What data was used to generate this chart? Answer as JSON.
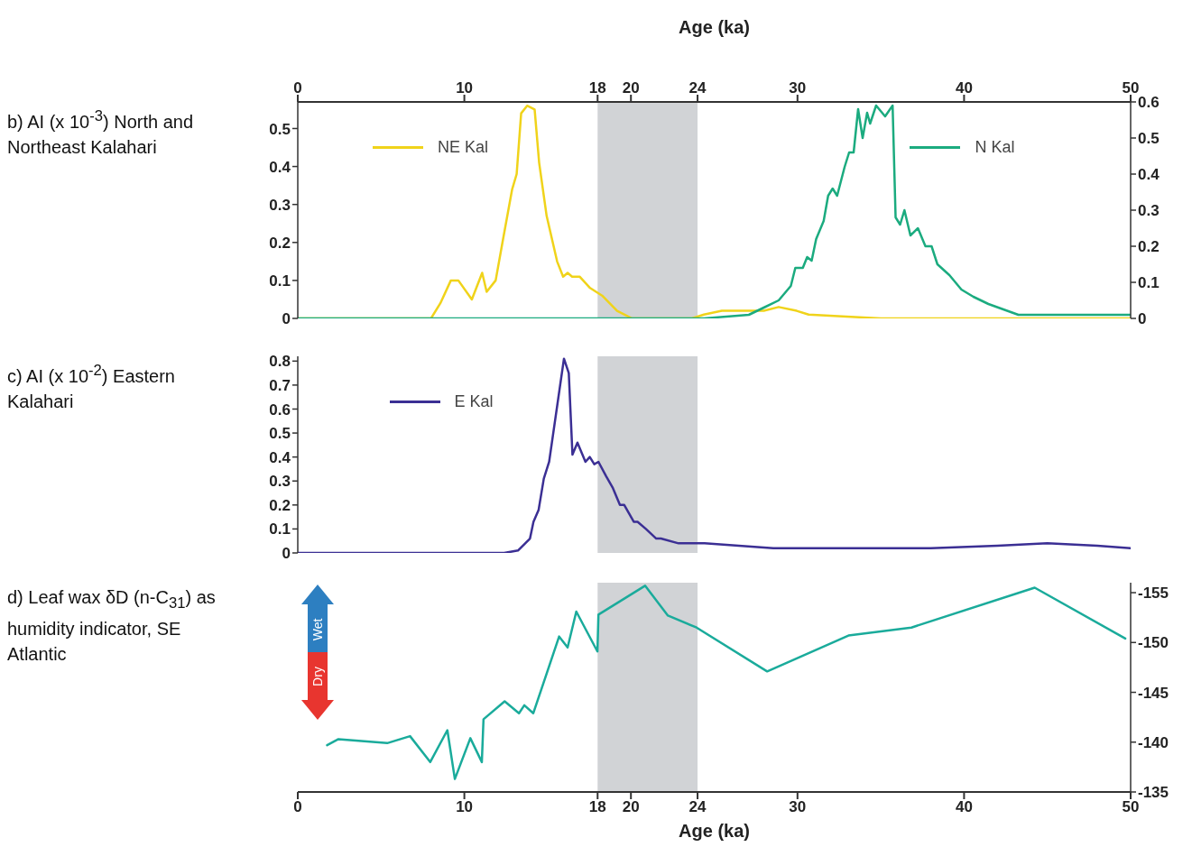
{
  "chart_data": [
    {
      "type": "line",
      "ylabel": "b) AI (x 10$^{-3}$) North and Northeast Kalahari",
      "xlabel": "Age (ka)",
      "xlim": [
        0,
        50
      ],
      "xticks": [
        0,
        10,
        18,
        20,
        24,
        30,
        40,
        50
      ],
      "ylim": [
        0,
        0.57
      ],
      "yticks": [
        0,
        0.1,
        0.2,
        0.3,
        0.4,
        0.5
      ],
      "y2lim": [
        0,
        0.6
      ],
      "y2ticks": [
        0,
        0.1,
        0.2,
        0.3,
        0.4,
        0.5,
        0.6
      ],
      "legend": "top",
      "bands": [
        {
          "axis": "x",
          "from": 18,
          "to": 24,
          "color": "#d1d3d6"
        }
      ],
      "series": [
        {
          "name": "NE Kal",
          "color": "#f0d31a",
          "x": [
            0,
            8,
            8.56,
            9.19,
            9.64,
            10.45,
            11.07,
            11.34,
            11.88,
            12.33,
            12.87,
            13.14,
            13.41,
            13.77,
            14.22,
            14.49,
            14.94,
            15.57,
            15.93,
            16.2,
            16.47,
            16.92,
            17.55,
            18.27,
            19.17,
            20.07,
            21.87,
            23.66,
            24.38,
            25.46,
            26.7,
            27.98,
            28.87,
            29.95,
            30.67,
            35,
            50
          ],
          "values": [
            0,
            0,
            0.04,
            0.1,
            0.1,
            0.05,
            0.12,
            0.07,
            0.1,
            0.21,
            0.34,
            0.38,
            0.54,
            0.56,
            0.55,
            0.41,
            0.27,
            0.15,
            0.11,
            0.12,
            0.11,
            0.11,
            0.08,
            0.06,
            0.02,
            0,
            0,
            0,
            0.01,
            0.02,
            0.02,
            0.02,
            0.03,
            0.02,
            0.01,
            0,
            0
          ]
        },
        {
          "name": "N Kal",
          "color": "#1bab7f",
          "axis": "y2",
          "x": [
            0,
            24.38,
            27.08,
            27.98,
            28.87,
            29.6,
            29.87,
            30.32,
            30.58,
            30.85,
            31.12,
            31.57,
            31.84,
            32.11,
            32.38,
            32.83,
            33.1,
            33.37,
            33.64,
            33.91,
            34.18,
            34.36,
            34.72,
            35.26,
            35.71,
            35.89,
            36.16,
            36.42,
            36.78,
            37.23,
            37.68,
            38.05,
            38.4,
            39.12,
            39.84,
            40.56,
            41.46,
            43.26,
            45.06,
            50
          ],
          "values": [
            0,
            0,
            0.01,
            0.03,
            0.05,
            0.09,
            0.14,
            0.14,
            0.17,
            0.16,
            0.22,
            0.27,
            0.34,
            0.36,
            0.34,
            0.42,
            0.46,
            0.46,
            0.58,
            0.5,
            0.57,
            0.54,
            0.59,
            0.56,
            0.59,
            0.28,
            0.26,
            0.3,
            0.23,
            0.25,
            0.2,
            0.2,
            0.15,
            0.12,
            0.08,
            0.06,
            0.04,
            0.01,
            0.01,
            0.01
          ]
        }
      ]
    },
    {
      "type": "line",
      "ylabel": "c) AI (x 10$^{-2}$) Eastern Kalahari",
      "xlim": [
        0,
        50
      ],
      "ylim": [
        0,
        0.82
      ],
      "yticks": [
        0,
        0.1,
        0.2,
        0.3,
        0.4,
        0.5,
        0.6,
        0.7,
        0.8
      ],
      "tick_labels": "y",
      "legend": "top left",
      "bands": [
        {
          "axis": "x",
          "from": 18,
          "to": 24,
          "color": "#d1d3d6"
        }
      ],
      "series": [
        {
          "name": "E Kal",
          "color": "#3b2f94",
          "x": [
            0,
            12.39,
            13.22,
            13.94,
            14.15,
            14.46,
            14.77,
            15.09,
            15.98,
            16.27,
            16.49,
            16.79,
            17.27,
            17.53,
            17.8,
            18.05,
            18.51,
            18.92,
            19.34,
            19.6,
            20.17,
            20.4,
            20.9,
            21.52,
            21.8,
            22.86,
            24.42,
            26.48,
            28.55,
            30.85,
            35,
            38,
            42,
            45,
            48,
            50
          ],
          "values": [
            0,
            0,
            0.01,
            0.06,
            0.13,
            0.18,
            0.31,
            0.38,
            0.81,
            0.75,
            0.41,
            0.46,
            0.38,
            0.4,
            0.37,
            0.38,
            0.32,
            0.27,
            0.2,
            0.2,
            0.13,
            0.13,
            0.1,
            0.06,
            0.06,
            0.04,
            0.04,
            0.03,
            0.02,
            0.02,
            0.02,
            0.02,
            0.03,
            0.04,
            0.03,
            0.02
          ]
        }
      ]
    },
    {
      "type": "line",
      "ylabel": "d) Leaf wax δD (n-C$_{31}$) as humidity indicator, SE Atlantic",
      "xlabel": "Age (ka)",
      "xlim": [
        0,
        50
      ],
      "xticks": [
        0,
        10,
        18,
        20,
        24,
        30,
        40,
        50
      ],
      "y2lim": [
        -135,
        -156
      ],
      "y2ticks": [
        -155,
        -150,
        -145,
        -140,
        -135
      ],
      "annotations": [
        "Wet",
        "Dry"
      ],
      "bands": [
        {
          "axis": "x",
          "from": 18,
          "to": 24,
          "color": "#d1d3d6"
        }
      ],
      "series": [
        {
          "color": "#1aab9b",
          "axis": "y2",
          "x": [
            1.76,
            2.44,
            5.37,
            6.74,
            7.95,
            8.98,
            9.43,
            10.36,
            11.05,
            11.15,
            12.42,
            13.28,
            13.6,
            14.14,
            15.69,
            16.2,
            16.72,
            17.99,
            18.05,
            20.85,
            22.22,
            23.94,
            28.18,
            33.06,
            36.84,
            44.24,
            49.68
          ],
          "values": [
            -139.7,
            -140.3,
            -139.9,
            -140.6,
            -138,
            -141.2,
            -136.3,
            -140.4,
            -138,
            -142.3,
            -144.1,
            -142.9,
            -143.7,
            -142.9,
            -150.6,
            -149.5,
            -153.1,
            -149.1,
            -152.8,
            -155.7,
            -152.7,
            -151.5,
            -147.1,
            -150.7,
            -151.5,
            -155.5,
            -150.4
          ]
        }
      ]
    }
  ]
}
